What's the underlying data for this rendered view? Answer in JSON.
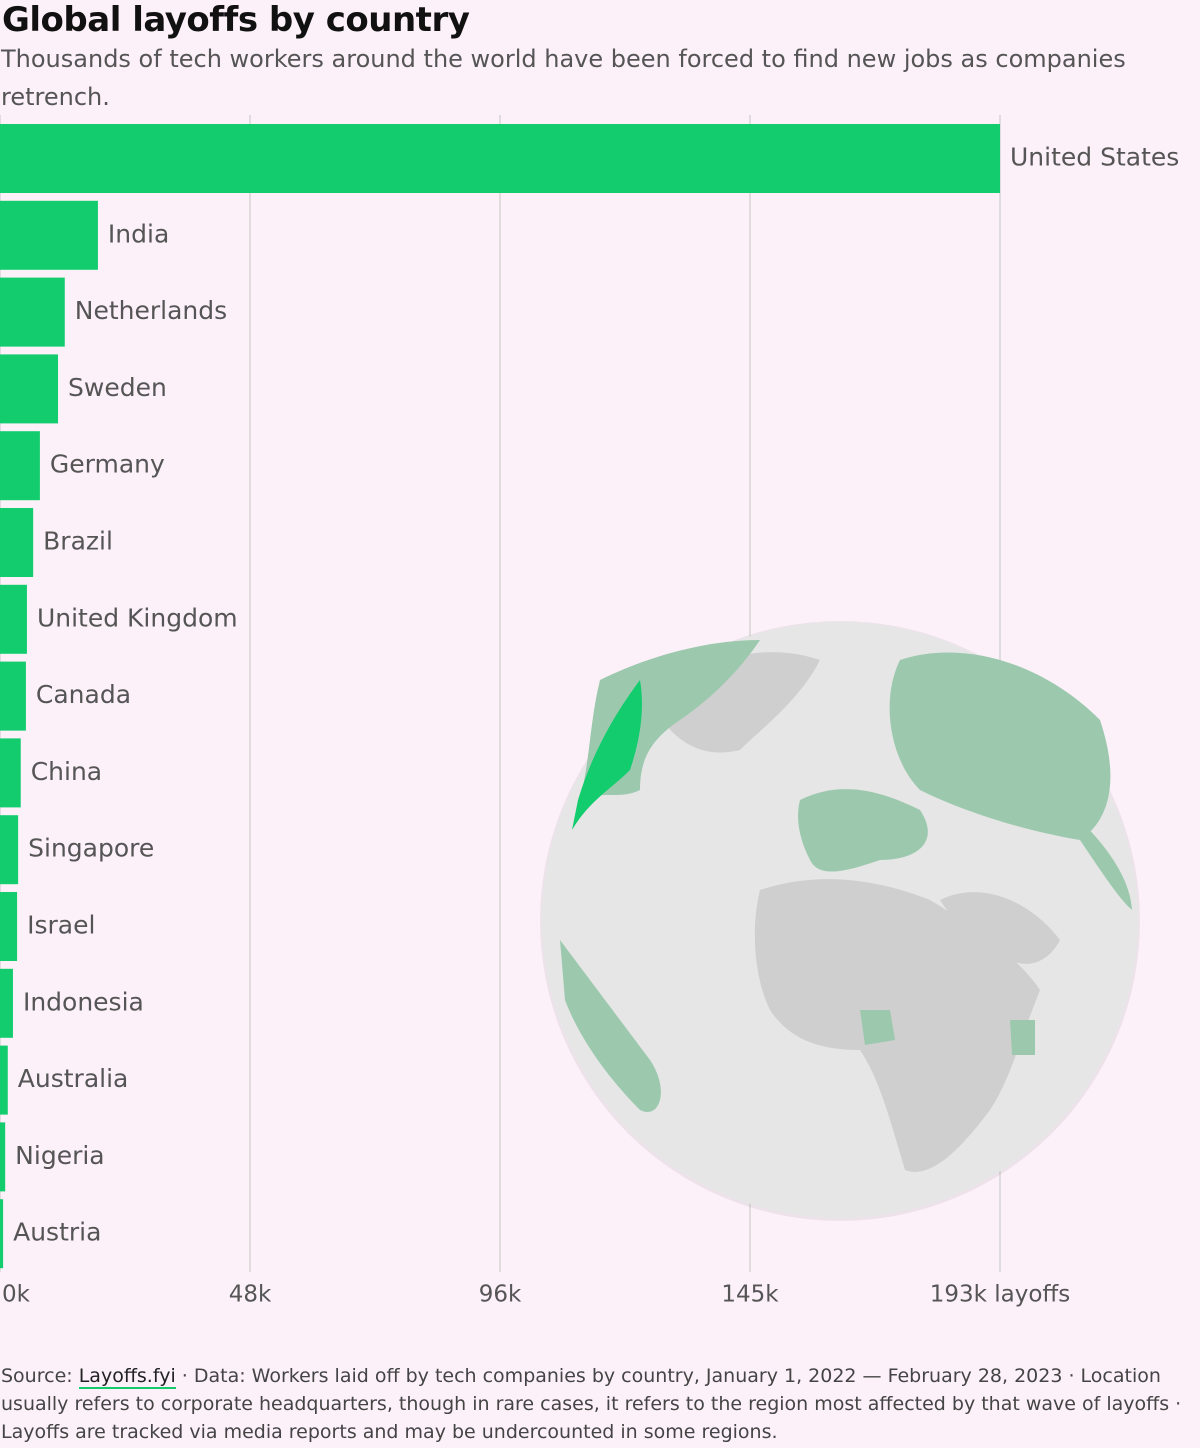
{
  "chart_data": {
    "type": "hbar",
    "title": "Global layoffs by country",
    "subtitle": "Thousands of tech workers around the world have been forced to find new jobs as companies retrench.",
    "categories": [
      "United States",
      "India",
      "Netherlands",
      "Sweden",
      "Germany",
      "Brazil",
      "United Kingdom",
      "Canada",
      "China",
      "Singapore",
      "Israel",
      "Indonesia",
      "Australia",
      "Nigeria",
      "Austria"
    ],
    "values": [
      193000,
      18900,
      12500,
      11200,
      7700,
      6400,
      5200,
      5000,
      4000,
      3500,
      3300,
      2500,
      1500,
      1000,
      600
    ],
    "color": "#12cc6e",
    "xlim": [
      0,
      193000
    ],
    "xticks": [
      {
        "value": 0,
        "label": "0k"
      },
      {
        "value": 48250,
        "label": "48k"
      },
      {
        "value": 96500,
        "label": "96k"
      },
      {
        "value": 144750,
        "label": "145k"
      },
      {
        "value": 193000,
        "label": "193k layoffs"
      }
    ],
    "grid": true,
    "footer": {
      "source_prefix": "Source:",
      "source_link": "Layoffs.fyi",
      "note": "· Data: Workers laid off by tech companies by country, January 1, 2022 — February 28, 2023 · Location usually refers to corporate headquarters, though in rare cases, it refers to the region most affected by that wave of layoffs · Layoffs are tracked via media reports and may be undercounted in some regions."
    }
  }
}
